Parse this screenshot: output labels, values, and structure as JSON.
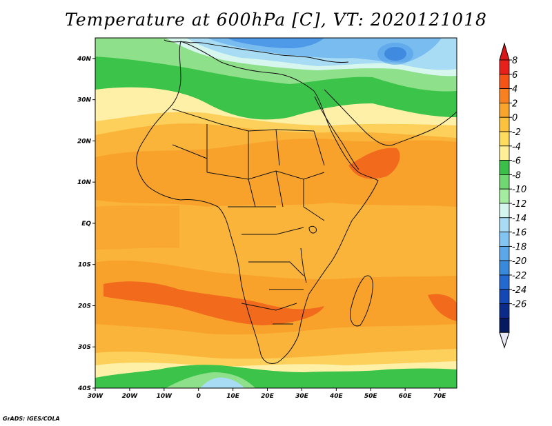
{
  "title": "Temperature at 600hPa [C], VT: 2020121018",
  "credit": "GrADS: IGES/COLA",
  "map": {
    "lat_labels": [
      "40N",
      "30N",
      "20N",
      "10N",
      "EQ",
      "10S",
      "20S",
      "30S",
      "40S"
    ],
    "lon_labels": [
      "30W",
      "20W",
      "10W",
      "0",
      "10E",
      "20E",
      "30E",
      "40E",
      "50E",
      "60E",
      "70E"
    ],
    "lat_range": [
      -40,
      45
    ],
    "lon_range": [
      -30,
      75
    ],
    "colors": {
      "c_m2": "#fff0a8",
      "c_m4": "#fde97a",
      "c_0": "#fcd05a",
      "c_2": "#fbb43a",
      "c_4": "#f8a22c",
      "c_6": "#f26a1c",
      "c_m6": "#3cc44a",
      "c_m8": "#8ee08a",
      "c_m10": "#d6f6ee",
      "c_m12": "#a8dcf4",
      "c_m14": "#78bcf0",
      "c_m16": "#4e9ae8",
      "c_m18": "#2f76d8",
      "coast": "#111111"
    }
  },
  "colorbar": {
    "labels": [
      "8",
      "6",
      "4",
      "2",
      "0",
      "-2",
      "-4",
      "-6",
      "-8",
      "-10",
      "-12",
      "-14",
      "-16",
      "-18",
      "-20",
      "-22",
      "-24",
      "-26"
    ],
    "colors": [
      "#e8201a",
      "#f55416",
      "#f8801e",
      "#fba42c",
      "#fcc23e",
      "#fddc5e",
      "#fff098",
      "#3cbf48",
      "#70d870",
      "#a4eca0",
      "#d4f6ee",
      "#a8dcf4",
      "#82c4f2",
      "#5ca6ea",
      "#3888dc",
      "#226ad0",
      "#1448b4",
      "#0c2a8a",
      "#061a60"
    ],
    "top_triangle_color": "#d81818",
    "bottom_triangle_color": "#e8e8f4"
  }
}
